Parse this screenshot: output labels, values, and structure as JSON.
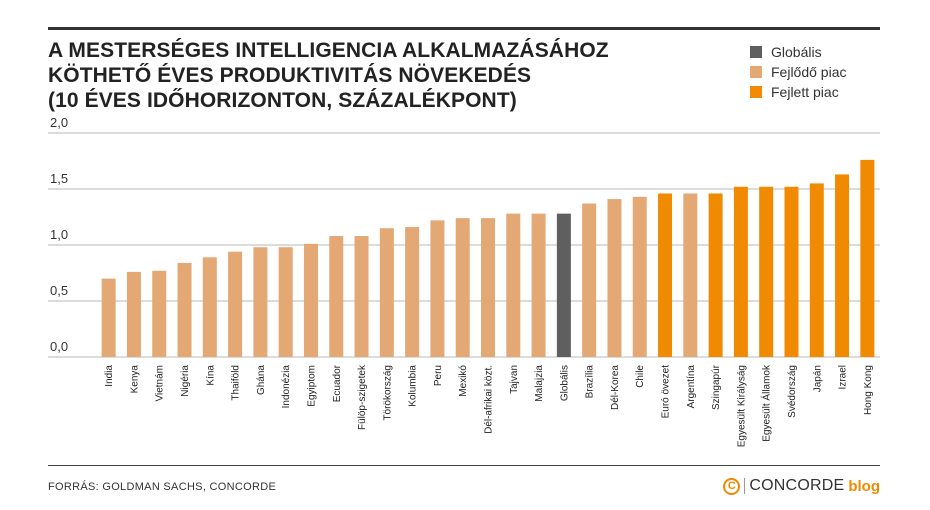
{
  "header": {
    "title_lines": [
      "A MESTERSÉGES INTELLIGENCIA ALKALMAZÁSÁHOZ",
      "KÖTHETŐ ÉVES PRODUKTIVITÁS NÖVEKEDÉS",
      "(10 ÉVES IDŐHORIZONTON, SZÁZALÉKPONT)"
    ]
  },
  "legend": {
    "items": [
      {
        "label": "Globális",
        "color": "#5f5f5f"
      },
      {
        "label": "Fejlődő piac",
        "color": "#e3a873"
      },
      {
        "label": "Fejlett piac",
        "color": "#f08a00"
      }
    ]
  },
  "footer": {
    "source": "FORRÁS: GOLDMAN SACHS, CONCORDE",
    "brand_mark": "C",
    "brand_name": "CONCORDE",
    "brand_sub": "blog"
  },
  "chart_data": {
    "type": "bar",
    "ylim": [
      0,
      2.0
    ],
    "yticks": [
      "0,0",
      "0,5",
      "1,0",
      "1,5",
      "2,0"
    ],
    "grid": true,
    "legend_position": "top-right",
    "categories": [
      "India",
      "Kenya",
      "Vietnám",
      "Nigéria",
      "Kína",
      "Thaiföld",
      "Ghána",
      "Indonézia",
      "Egyiptom",
      "Ecuador",
      "Fülöp-szigetek",
      "Törökország",
      "Kolumbia",
      "Peru",
      "Mexikó",
      "Dél-afrikai közt.",
      "Tajvan",
      "Malajzia",
      "Globális",
      "Brazília",
      "Dél-Korea",
      "Chile",
      "Euró övezet",
      "Argentína",
      "Szingapúr",
      "Egyesült Királyság",
      "Egyesült Államok",
      "Svédország",
      "Japán",
      "Izrael",
      "Hong Kong"
    ],
    "values": [
      0.7,
      0.76,
      0.77,
      0.84,
      0.89,
      0.94,
      0.98,
      0.98,
      1.01,
      1.08,
      1.08,
      1.15,
      1.16,
      1.22,
      1.24,
      1.24,
      1.28,
      1.28,
      1.28,
      1.37,
      1.41,
      1.43,
      1.46,
      1.46,
      1.46,
      1.52,
      1.52,
      1.52,
      1.55,
      1.63,
      1.76
    ],
    "groups": [
      "Fejlődő piac",
      "Fejlődő piac",
      "Fejlődő piac",
      "Fejlődő piac",
      "Fejlődő piac",
      "Fejlődő piac",
      "Fejlődő piac",
      "Fejlődő piac",
      "Fejlődő piac",
      "Fejlődő piac",
      "Fejlődő piac",
      "Fejlődő piac",
      "Fejlődő piac",
      "Fejlődő piac",
      "Fejlődő piac",
      "Fejlődő piac",
      "Fejlődő piac",
      "Fejlődő piac",
      "Globális",
      "Fejlődő piac",
      "Fejlődő piac",
      "Fejlődő piac",
      "Fejlett piac",
      "Fejlődő piac",
      "Fejlett piac",
      "Fejlett piac",
      "Fejlett piac",
      "Fejlett piac",
      "Fejlett piac",
      "Fejlett piac",
      "Fejlett piac"
    ]
  }
}
